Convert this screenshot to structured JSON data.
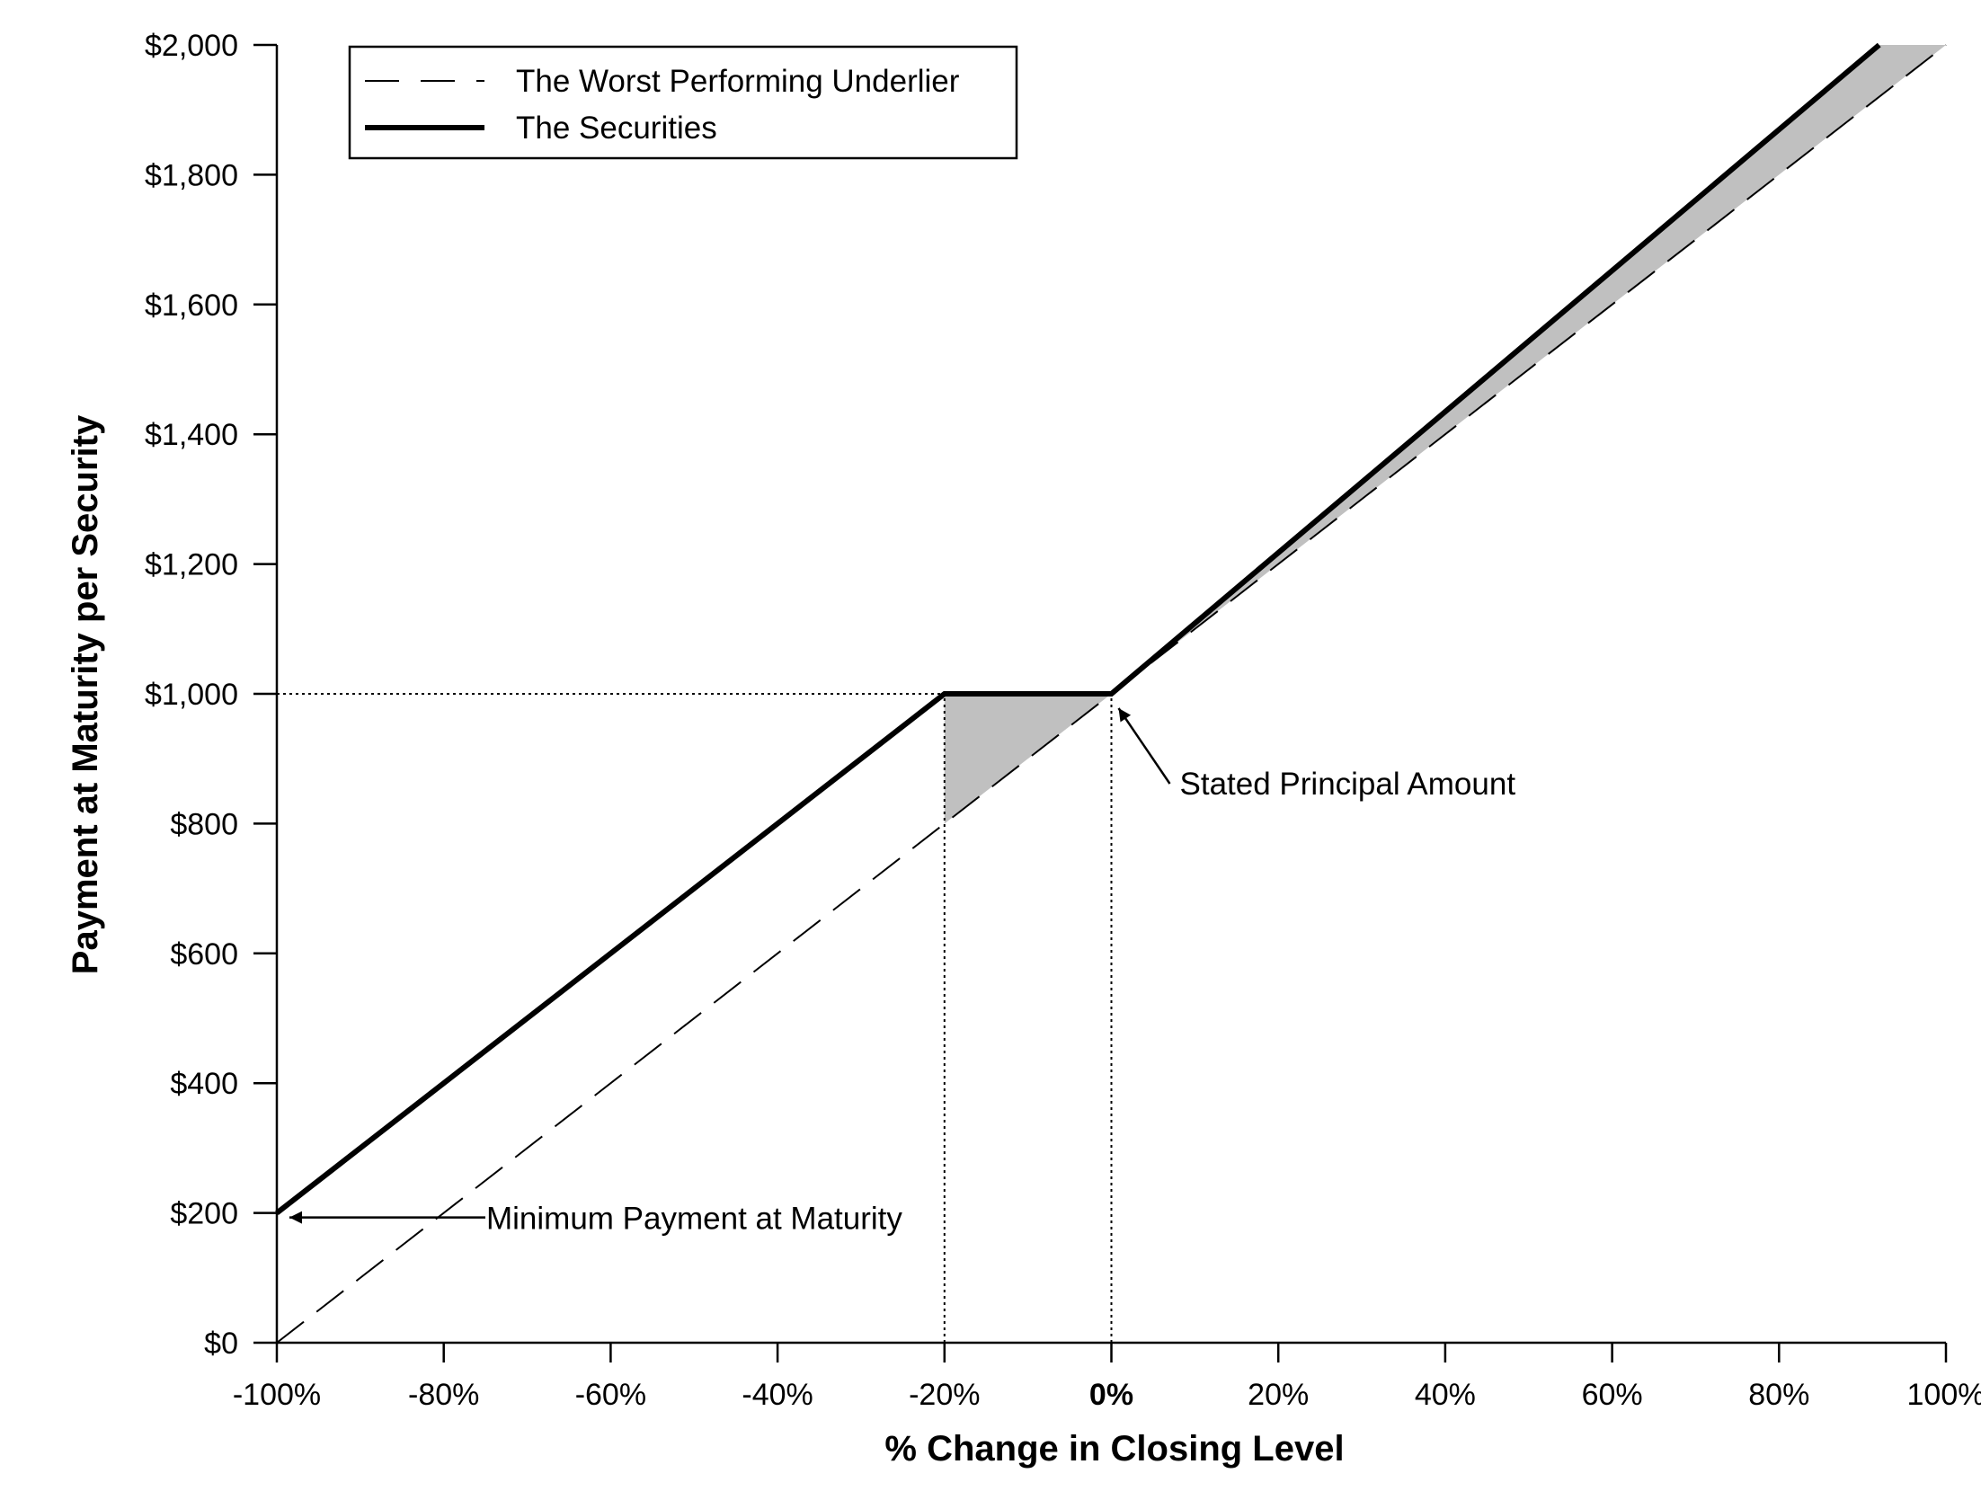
{
  "chart_data": {
    "type": "line",
    "title": "",
    "xlabel": "% Change in Closing Level",
    "ylabel": "Payment at Maturity per Security",
    "xlim": [
      -100,
      100
    ],
    "ylim": [
      0,
      2000
    ],
    "x_ticks": [
      -100,
      -80,
      -60,
      -40,
      -20,
      0,
      20,
      40,
      60,
      80,
      100
    ],
    "x_tick_labels": [
      "-100%",
      "-80%",
      "-60%",
      "-40%",
      "-20%",
      "0%",
      "20%",
      "40%",
      "60%",
      "80%",
      "100%"
    ],
    "y_ticks": [
      0,
      200,
      400,
      600,
      800,
      1000,
      1200,
      1400,
      1600,
      1800,
      2000
    ],
    "y_tick_labels": [
      "$0",
      "$200",
      "$400",
      "$600",
      "$800",
      "$1,000",
      "$1,200",
      "$1,400",
      "$1,600",
      "$1,800",
      "$2,000"
    ],
    "grid": false,
    "legend_position": "top-left",
    "series": [
      {
        "name": "The Worst Performing Underlier",
        "style": "dashed",
        "color": "#000000",
        "points": [
          [
            -100,
            0
          ],
          [
            100,
            2000
          ]
        ]
      },
      {
        "name": "The Securities",
        "style": "solid-thick",
        "color": "#000000",
        "points": [
          [
            -100,
            200
          ],
          [
            -20,
            1000
          ],
          [
            0,
            1000
          ],
          [
            92,
            2000
          ]
        ]
      }
    ],
    "shaded_regions": [
      {
        "color": "#c0c0c0",
        "points": [
          [
            -20,
            1000
          ],
          [
            0,
            1000
          ],
          [
            -20,
            800
          ]
        ]
      },
      {
        "color": "#c0c0c0",
        "points": [
          [
            0,
            1000
          ],
          [
            92,
            2000
          ],
          [
            100,
            2000
          ]
        ]
      }
    ],
    "reference_lines": [
      {
        "style": "dotted",
        "points": [
          [
            -100,
            1000
          ],
          [
            -20,
            1000
          ]
        ]
      },
      {
        "style": "dotted",
        "points": [
          [
            -20,
            0
          ],
          [
            -20,
            1000
          ]
        ]
      },
      {
        "style": "dotted",
        "points": [
          [
            0,
            0
          ],
          [
            0,
            1000
          ]
        ]
      }
    ],
    "annotations": [
      {
        "text": "Stated Principal Amount",
        "point": [
          0,
          1000
        ]
      },
      {
        "text": "Minimum Payment at Maturity",
        "point": [
          -100,
          200
        ]
      }
    ]
  }
}
